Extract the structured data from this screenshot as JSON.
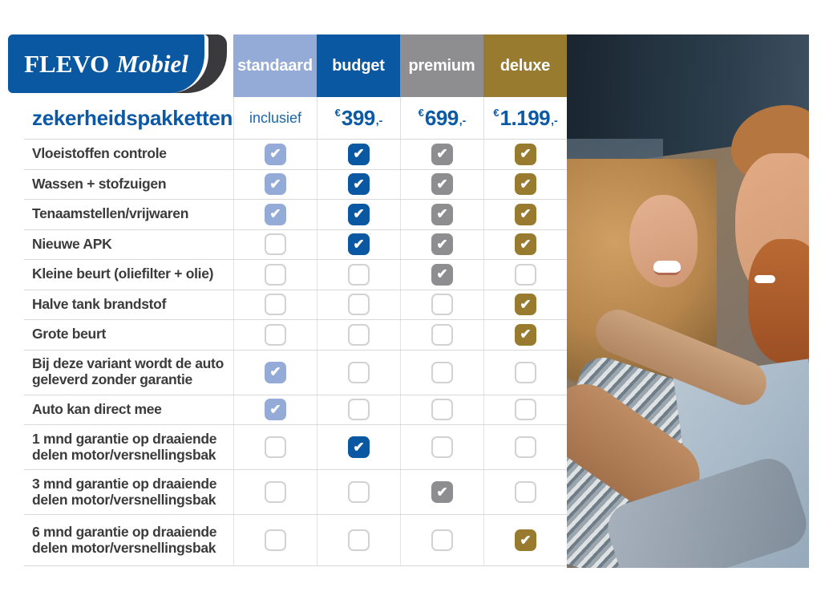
{
  "logo": {
    "brand_primary": "FLEVO",
    "brand_secondary": "Mobiel"
  },
  "title": "zekerheidspakketten",
  "icons": {
    "check": "✔"
  },
  "colors": {
    "brand_blue": "#0a57a2",
    "price_blue": "#0c5aa5",
    "label_gray": "#3b3b3b",
    "grid_line": "#d9d9d9"
  },
  "columns": [
    {
      "id": "standaard",
      "label": "standaard",
      "color": "#93abd6",
      "price": {
        "text": "inclusief"
      }
    },
    {
      "id": "budget",
      "label": "budget",
      "color": "#0b58a2",
      "price": {
        "currency": "€",
        "amount": "399",
        "suffix": ",-"
      }
    },
    {
      "id": "premium",
      "label": "premium",
      "color": "#8e8e90",
      "price": {
        "currency": "€",
        "amount": "699",
        "suffix": ",-"
      }
    },
    {
      "id": "deluxe",
      "label": "deluxe",
      "color": "#997b30",
      "price": {
        "currency": "€",
        "amount": "1.199",
        "suffix": ",-"
      }
    }
  ],
  "rows": [
    {
      "label": "Vloeistoffen controle",
      "checks": [
        true,
        true,
        true,
        true
      ]
    },
    {
      "label": "Wassen + stofzuigen",
      "checks": [
        true,
        true,
        true,
        true
      ]
    },
    {
      "label": "Tenaamstellen/vrijwaren",
      "checks": [
        true,
        true,
        true,
        true
      ]
    },
    {
      "label": "Nieuwe APK",
      "checks": [
        false,
        true,
        true,
        true
      ]
    },
    {
      "label": "Kleine beurt (oliefilter + olie)",
      "checks": [
        false,
        false,
        true,
        false
      ]
    },
    {
      "label": "Halve tank brandstof",
      "checks": [
        false,
        false,
        false,
        true
      ]
    },
    {
      "label": "Grote beurt",
      "checks": [
        false,
        false,
        false,
        true
      ]
    },
    {
      "label": "Bij deze variant wordt de auto geleverd zonder garantie",
      "checks": [
        true,
        false,
        false,
        false
      ]
    },
    {
      "label": "Auto kan direct mee",
      "checks": [
        true,
        false,
        false,
        false
      ]
    },
    {
      "label": "1 mnd garantie op draaiende delen motor/versnellingsbak",
      "checks": [
        false,
        true,
        false,
        false
      ]
    },
    {
      "label": "3 mnd garantie op draaiende delen motor/versnellingsbak",
      "checks": [
        false,
        false,
        true,
        false
      ]
    },
    {
      "label": "6 mnd garantie op draaiende delen motor/versnellingsbak",
      "checks": [
        false,
        false,
        false,
        true
      ]
    }
  ],
  "photo": {
    "description": "smiling couple inside a car, man with beard in foreground"
  }
}
